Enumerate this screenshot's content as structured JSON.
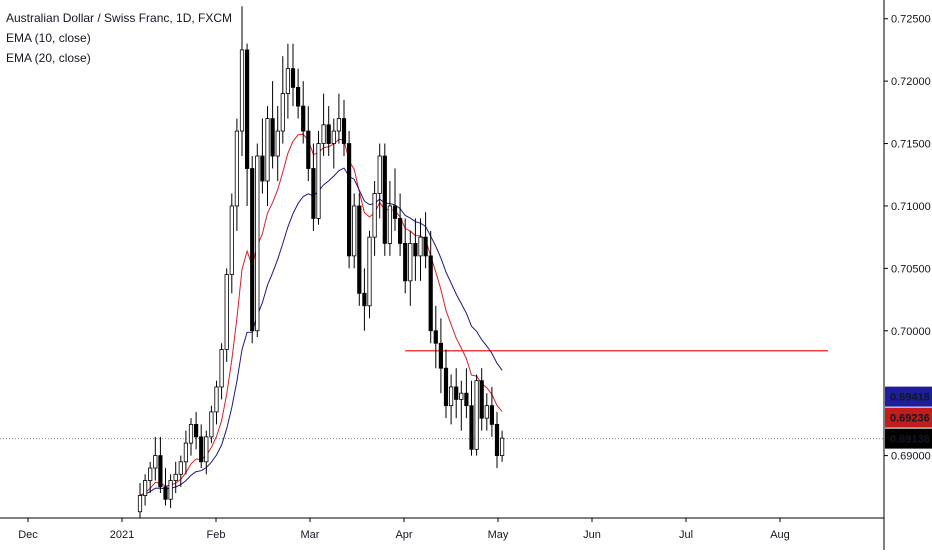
{
  "legend": {
    "title": "Australian Dollar / Swiss Franc, 1D, FXCM",
    "ema10": "EMA (10, close)",
    "ema20": "EMA (20, close)"
  },
  "chart_data": {
    "type": "candlestick",
    "symbol": "AUDCHF",
    "ylim": [
      0.685,
      0.7265
    ],
    "y_ticks": [
      "0.72500",
      "0.72000",
      "0.71500",
      "0.71000",
      "0.70500",
      "0.70000",
      "0.69000"
    ],
    "x_ticks": [
      "Dec",
      "2021",
      "Feb",
      "Mar",
      "Apr",
      "May",
      "Jun",
      "Jul",
      "Aug"
    ],
    "candles": [
      [
        0.6855,
        0.6878,
        0.685,
        0.6868
      ],
      [
        0.6868,
        0.6885,
        0.686,
        0.688
      ],
      [
        0.688,
        0.6895,
        0.687,
        0.689
      ],
      [
        0.689,
        0.6915,
        0.688,
        0.69
      ],
      [
        0.69,
        0.6915,
        0.687,
        0.6875
      ],
      [
        0.6875,
        0.689,
        0.686,
        0.6865
      ],
      [
        0.6865,
        0.6885,
        0.6858,
        0.688
      ],
      [
        0.688,
        0.6895,
        0.687,
        0.6885
      ],
      [
        0.6885,
        0.69,
        0.6875,
        0.6895
      ],
      [
        0.6895,
        0.692,
        0.6885,
        0.691
      ],
      [
        0.691,
        0.693,
        0.69,
        0.6925
      ],
      [
        0.6925,
        0.6935,
        0.6905,
        0.6915
      ],
      [
        0.6915,
        0.6925,
        0.689,
        0.6895
      ],
      [
        0.6895,
        0.692,
        0.6885,
        0.6915
      ],
      [
        0.6915,
        0.694,
        0.691,
        0.6935
      ],
      [
        0.6935,
        0.696,
        0.6925,
        0.6955
      ],
      [
        0.6955,
        0.699,
        0.6945,
        0.6985
      ],
      [
        0.6985,
        0.705,
        0.6975,
        0.7045
      ],
      [
        0.7045,
        0.711,
        0.703,
        0.71
      ],
      [
        0.71,
        0.717,
        0.708,
        0.716
      ],
      [
        0.716,
        0.726,
        0.714,
        0.7225
      ],
      [
        0.7225,
        0.723,
        0.71,
        0.713
      ],
      [
        0.713,
        0.714,
        0.699,
        0.7
      ],
      [
        0.7,
        0.715,
        0.6995,
        0.714
      ],
      [
        0.714,
        0.717,
        0.711,
        0.712
      ],
      [
        0.712,
        0.718,
        0.71,
        0.717
      ],
      [
        0.717,
        0.72,
        0.713,
        0.714
      ],
      [
        0.714,
        0.718,
        0.712,
        0.716
      ],
      [
        0.716,
        0.722,
        0.715,
        0.719
      ],
      [
        0.719,
        0.723,
        0.717,
        0.721
      ],
      [
        0.721,
        0.723,
        0.718,
        0.7195
      ],
      [
        0.7195,
        0.721,
        0.717,
        0.718
      ],
      [
        0.718,
        0.72,
        0.715,
        0.716
      ],
      [
        0.716,
        0.718,
        0.712,
        0.713
      ],
      [
        0.713,
        0.715,
        0.708,
        0.709
      ],
      [
        0.709,
        0.716,
        0.7085,
        0.715
      ],
      [
        0.715,
        0.719,
        0.714,
        0.7165
      ],
      [
        0.7165,
        0.718,
        0.714,
        0.715
      ],
      [
        0.715,
        0.717,
        0.713,
        0.716
      ],
      [
        0.716,
        0.719,
        0.715,
        0.717
      ],
      [
        0.717,
        0.7185,
        0.714,
        0.715
      ],
      [
        0.715,
        0.716,
        0.705,
        0.706
      ],
      [
        0.706,
        0.711,
        0.705,
        0.71
      ],
      [
        0.71,
        0.711,
        0.702,
        0.703
      ],
      [
        0.703,
        0.705,
        0.7,
        0.702
      ],
      [
        0.702,
        0.708,
        0.701,
        0.7075
      ],
      [
        0.7075,
        0.712,
        0.706,
        0.711
      ],
      [
        0.711,
        0.715,
        0.709,
        0.714
      ],
      [
        0.714,
        0.715,
        0.706,
        0.707
      ],
      [
        0.707,
        0.712,
        0.706,
        0.71
      ],
      [
        0.71,
        0.713,
        0.708,
        0.709
      ],
      [
        0.709,
        0.711,
        0.706,
        0.707
      ],
      [
        0.707,
        0.709,
        0.703,
        0.704
      ],
      [
        0.704,
        0.708,
        0.702,
        0.707
      ],
      [
        0.707,
        0.709,
        0.704,
        0.706
      ],
      [
        0.706,
        0.709,
        0.704,
        0.7075
      ],
      [
        0.7075,
        0.7095,
        0.705,
        0.706
      ],
      [
        0.706,
        0.708,
        0.699,
        0.7
      ],
      [
        0.7,
        0.702,
        0.697,
        0.699
      ],
      [
        0.699,
        0.701,
        0.695,
        0.697
      ],
      [
        0.697,
        0.6985,
        0.693,
        0.694
      ],
      [
        0.694,
        0.6965,
        0.6925,
        0.6955
      ],
      [
        0.6955,
        0.697,
        0.693,
        0.6945
      ],
      [
        0.6945,
        0.696,
        0.692,
        0.695
      ],
      [
        0.695,
        0.697,
        0.693,
        0.694
      ],
      [
        0.694,
        0.696,
        0.69,
        0.6905
      ],
      [
        0.6905,
        0.6965,
        0.69,
        0.696
      ],
      [
        0.696,
        0.697,
        0.692,
        0.693
      ],
      [
        0.693,
        0.695,
        0.692,
        0.694
      ],
      [
        0.694,
        0.6955,
        0.6915,
        0.6925
      ],
      [
        0.6925,
        0.6935,
        0.689,
        0.69
      ],
      [
        0.69,
        0.692,
        0.6895,
        0.6914
      ]
    ],
    "series": [
      {
        "name": "EMA (10, close)",
        "color": "#e31b23"
      },
      {
        "name": "EMA (20, close)",
        "color": "#1a1a80"
      }
    ],
    "hline": {
      "value": 0.6984,
      "color": "#f04040"
    },
    "crosshair_value": 0.69136,
    "price_labels": [
      {
        "text": "0.69418",
        "value": 0.69418,
        "color": "#1e1e9c"
      },
      {
        "text": "0.69236",
        "value": 0.69236,
        "color": "#c21d1d"
      },
      {
        "text": "0.69136",
        "value": 0.69136,
        "color": "#000000"
      }
    ],
    "colors": {
      "up": "#ffffff",
      "down": "#000000",
      "wick": "#000000",
      "axis_text": "#131722"
    }
  }
}
